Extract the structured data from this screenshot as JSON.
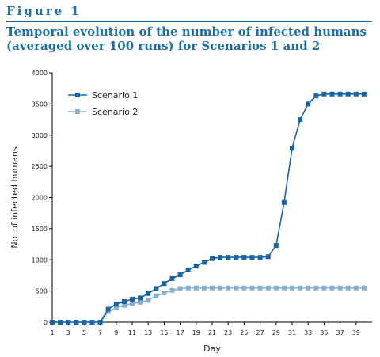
{
  "figure": {
    "label": "Figure 1",
    "title": "Temporal evolution of the number of infected humans (averaged over 100 runs) for Scenarios 1 and 2"
  },
  "colors": {
    "accent": "#1a6fa8",
    "series1": "#1565a8",
    "series2": "#8aaed0"
  },
  "chart_data": {
    "type": "line",
    "xlabel": "Day",
    "ylabel": "No. of infected humans",
    "xlim": [
      1,
      41
    ],
    "ylim": [
      0,
      4000
    ],
    "xticks": [
      1,
      3,
      5,
      7,
      9,
      11,
      13,
      15,
      17,
      19,
      21,
      23,
      25,
      27,
      29,
      31,
      33,
      35,
      37,
      39
    ],
    "yticks": [
      0,
      500,
      1000,
      1500,
      2000,
      2500,
      3000,
      3500,
      4000
    ],
    "legend_position": "top-left",
    "grid": false,
    "x": [
      1,
      2,
      3,
      4,
      5,
      6,
      7,
      8,
      9,
      10,
      11,
      12,
      13,
      14,
      15,
      16,
      17,
      18,
      19,
      20,
      21,
      22,
      23,
      24,
      25,
      26,
      27,
      28,
      29,
      30,
      31,
      32,
      33,
      34,
      35,
      36,
      37,
      38,
      39,
      40
    ],
    "series": [
      {
        "name": "Scenario 1",
        "marker": "square",
        "values": [
          0,
          0,
          0,
          0,
          0,
          0,
          0,
          210,
          290,
          330,
          370,
          390,
          460,
          540,
          620,
          700,
          760,
          840,
          900,
          960,
          1020,
          1040,
          1040,
          1040,
          1040,
          1040,
          1040,
          1050,
          1230,
          1920,
          2790,
          3250,
          3500,
          3630,
          3660,
          3660,
          3660,
          3660,
          3660,
          3660
        ]
      },
      {
        "name": "Scenario 2",
        "marker": "square",
        "values": [
          0,
          0,
          0,
          0,
          0,
          0,
          0,
          170,
          230,
          270,
          300,
          320,
          350,
          420,
          470,
          510,
          540,
          550,
          550,
          550,
          550,
          550,
          550,
          550,
          550,
          550,
          550,
          550,
          550,
          550,
          550,
          550,
          550,
          550,
          550,
          550,
          550,
          550,
          550,
          550
        ]
      }
    ]
  }
}
